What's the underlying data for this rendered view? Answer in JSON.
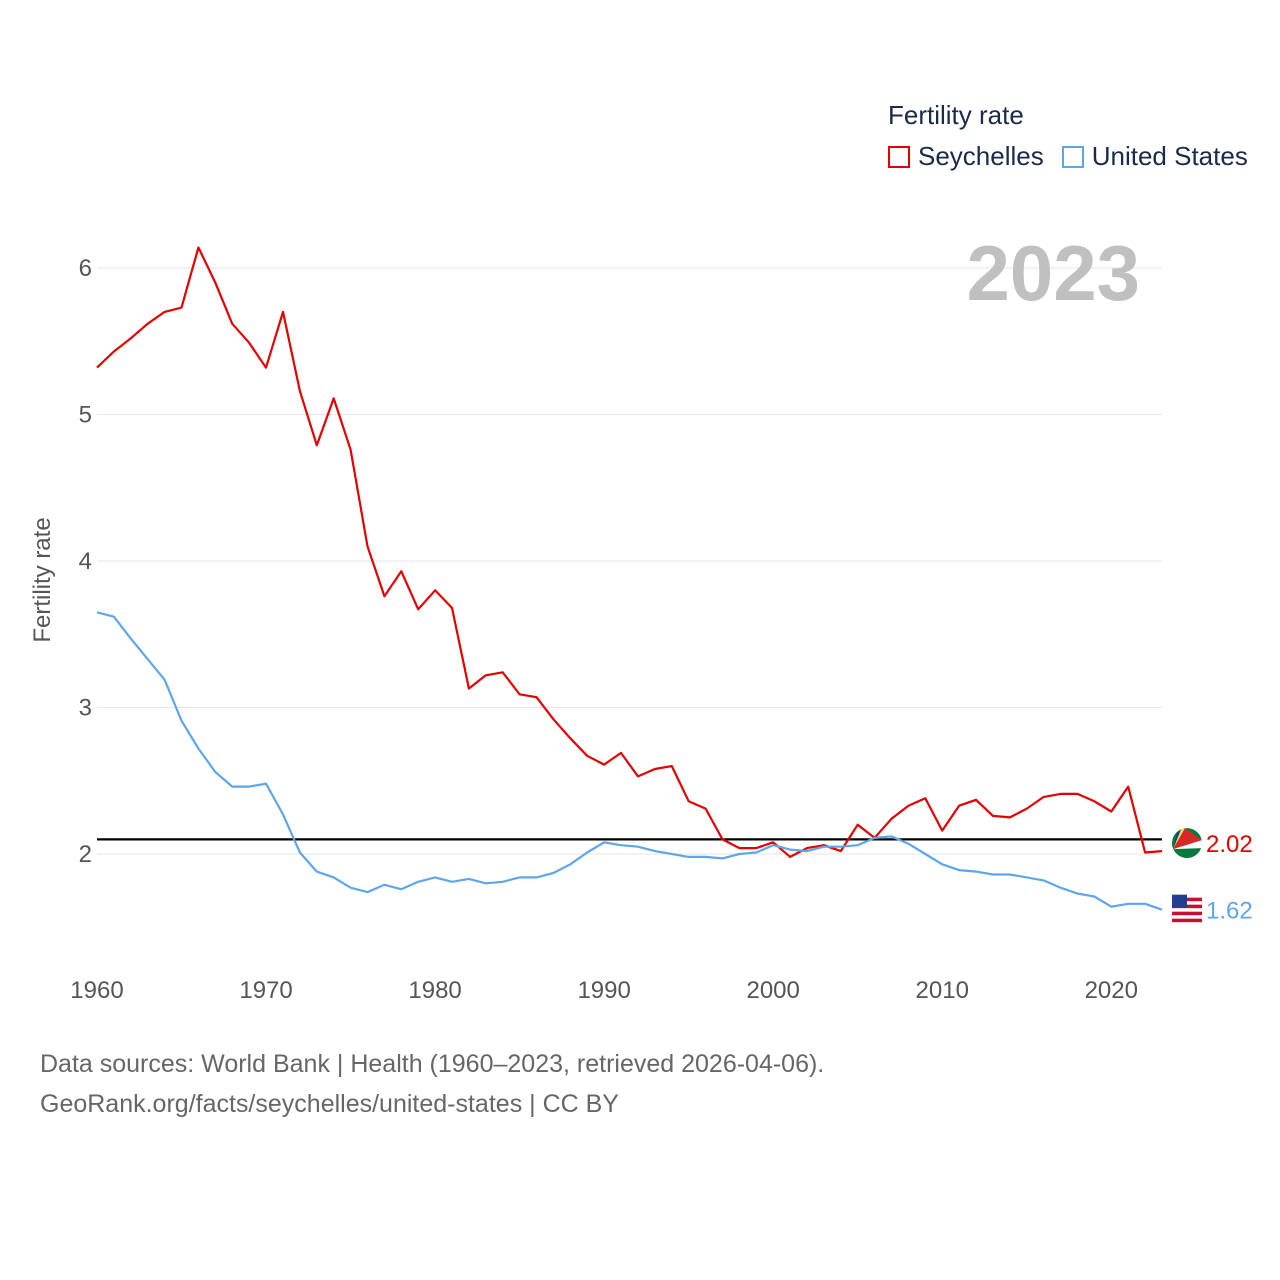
{
  "legend": {
    "title": "Fertility rate",
    "items": [
      {
        "label": "Seychelles",
        "color": "#e30000"
      },
      {
        "label": "United States",
        "color": "#5fa6e8"
      }
    ]
  },
  "current_year": "2023",
  "source": {
    "line1": "Data sources: World Bank | Health (1960–2023, retrieved 2026-04-06).",
    "line2": "GeoRank.org/facts/seychelles/united-states | CC BY"
  },
  "chart_data": {
    "type": "line",
    "title": "Fertility rate",
    "xlabel": "",
    "ylabel": "Fertility rate",
    "xlim": [
      1960,
      2023
    ],
    "ylim": [
      1.3,
      6.3
    ],
    "xticks": [
      1960,
      1970,
      1980,
      1990,
      2000,
      2010,
      2020
    ],
    "yticks": [
      2,
      3,
      4,
      5,
      6
    ],
    "reference_line": 2.1,
    "grid": true,
    "x_start": 1960,
    "series": [
      {
        "name": "Seychelles",
        "color": "#e30000",
        "end_label": "2.02",
        "values": [
          5.32,
          5.43,
          5.52,
          5.62,
          5.7,
          5.73,
          6.14,
          5.9,
          5.62,
          5.49,
          5.32,
          5.7,
          5.16,
          4.79,
          5.11,
          4.76,
          4.1,
          3.76,
          3.93,
          3.67,
          3.8,
          3.68,
          3.13,
          3.22,
          3.24,
          3.09,
          3.07,
          2.92,
          2.79,
          2.67,
          2.61,
          2.69,
          2.53,
          2.58,
          2.6,
          2.36,
          2.31,
          2.1,
          2.04,
          2.04,
          2.08,
          1.98,
          2.04,
          2.06,
          2.02,
          2.2,
          2.11,
          2.24,
          2.33,
          2.38,
          2.16,
          2.33,
          2.37,
          2.26,
          2.25,
          2.31,
          2.39,
          2.41,
          2.41,
          2.36,
          2.29,
          2.46,
          2.01,
          2.02
        ]
      },
      {
        "name": "United States",
        "color": "#5fa6e8",
        "end_label": "1.62",
        "values": [
          3.65,
          3.62,
          3.47,
          3.33,
          3.19,
          2.91,
          2.72,
          2.56,
          2.46,
          2.46,
          2.48,
          2.27,
          2.01,
          1.88,
          1.84,
          1.77,
          1.74,
          1.79,
          1.76,
          1.81,
          1.84,
          1.81,
          1.83,
          1.8,
          1.81,
          1.84,
          1.84,
          1.87,
          1.93,
          2.01,
          2.08,
          2.06,
          2.05,
          2.02,
          2.0,
          1.98,
          1.98,
          1.97,
          2.0,
          2.01,
          2.06,
          2.03,
          2.02,
          2.05,
          2.05,
          2.06,
          2.11,
          2.12,
          2.07,
          2.0,
          1.93,
          1.89,
          1.88,
          1.86,
          1.86,
          1.84,
          1.82,
          1.77,
          1.73,
          1.71,
          1.64,
          1.66,
          1.66,
          1.62
        ]
      }
    ]
  }
}
